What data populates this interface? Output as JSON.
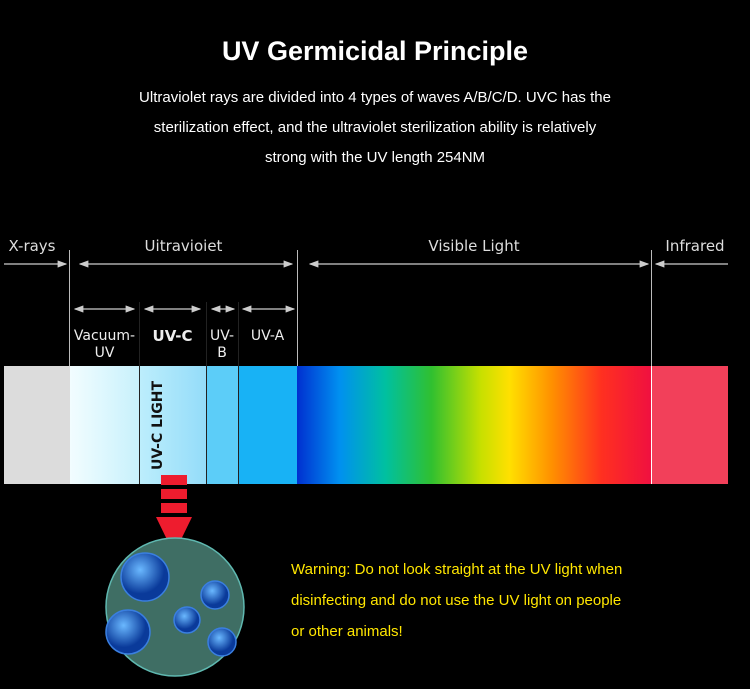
{
  "title": "UV Germicidal Principle",
  "description": [
    "Ultraviolet rays are divided into 4 types of waves A/B/C/D. UVC has the",
    "sterilization effect, and the ultraviolet sterilization ability is relatively",
    "strong with the UV length 254NM"
  ],
  "spectrum": {
    "bands": {
      "xrays": "X-rays",
      "ultraviolet": "Uitravioiet",
      "visible": "Visible Light",
      "infrared": "Infrared"
    },
    "uv_sub": {
      "vacuum": [
        "Vacuum-",
        "UV"
      ],
      "uvc": "UV-C",
      "uvb": [
        "UV-",
        "B"
      ],
      "uva": "UV-A"
    },
    "uvc_light": "UV-C LIGHT",
    "colors": {
      "xrays": "#dcdcdc",
      "uvc": "#a6e3fb",
      "uvb": "#5ccdf8",
      "uva": "#18b2f5",
      "infrared": "#f2405a",
      "arrow": "#ee1c2e",
      "circle": "#3f6e64"
    }
  },
  "warning": [
    "Warning: Do not look straight at the UV light when",
    "disinfecting and do not use the UV light on people",
    "or other animals!"
  ]
}
